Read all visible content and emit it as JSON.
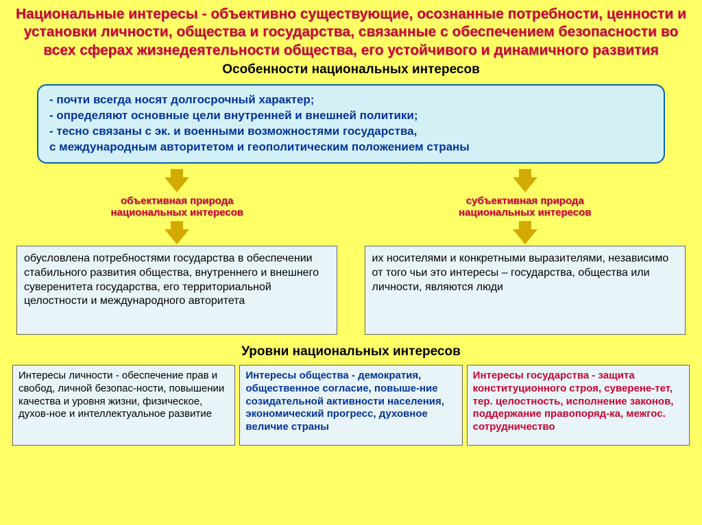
{
  "colors": {
    "background": "#ffff66",
    "title_red": "#cc0033",
    "box_bg": "#e8f4f7",
    "features_bg": "#d4f0f7",
    "features_border": "#0066aa",
    "features_text": "#003399",
    "arrow": "#d4aa00",
    "box_border": "#666666",
    "blue_text": "#003399"
  },
  "title": "Национальные интересы - объективно существующие, осознанные потребности, ценности и установки личности, общества и государства, связанные с обеспечением безопасности во всех сферах жизнедеятельности общества, его устойчивого и динамичного развития",
  "subtitle": "Особенности национальных интересов",
  "features": {
    "line1": "- почти всегда носят долгосрочный характер;",
    "line2": "- определяют основные цели внутренней и внешней политики;",
    "line3": "- тесно связаны с эк. и военными возможностями государства,",
    "line4": "с международным авторитетом и геополитическим положением страны"
  },
  "left": {
    "label1": "объективная природа",
    "label2": "национальных интересов",
    "text": "обусловлена потребностями государства в обеспечении стабильного развития общества, внутреннего и внешнего суверенитета государства, его территориальной целостности и международного авторитета"
  },
  "right": {
    "label1": "субъективная природа",
    "label2": "национальных интересов",
    "text": "их носителями и конкретными выразителями, независимо от того чьи это интересы – государства, общества или личности, являются люди"
  },
  "levels_title": "Уровни национальных интересов",
  "levels": [
    {
      "color": "black",
      "text": "Интересы личности - обеспечение прав и свобод, личной безопас-ности, повышении качества и уровня жизни, физическое, духов-ное и интеллектуальное развитие"
    },
    {
      "color": "blue",
      "text": "Интересы общества - демократия, общественное согласие, повыше-ние созидательной активности населения, экономический прогресс, духовное величие страны"
    },
    {
      "color": "red",
      "text": "Интересы государства - защита конституционного строя, суверене-тет, тер. целостность, исполнение законов, поддержание правопоряд-ка, межгос. сотрудничество"
    }
  ]
}
